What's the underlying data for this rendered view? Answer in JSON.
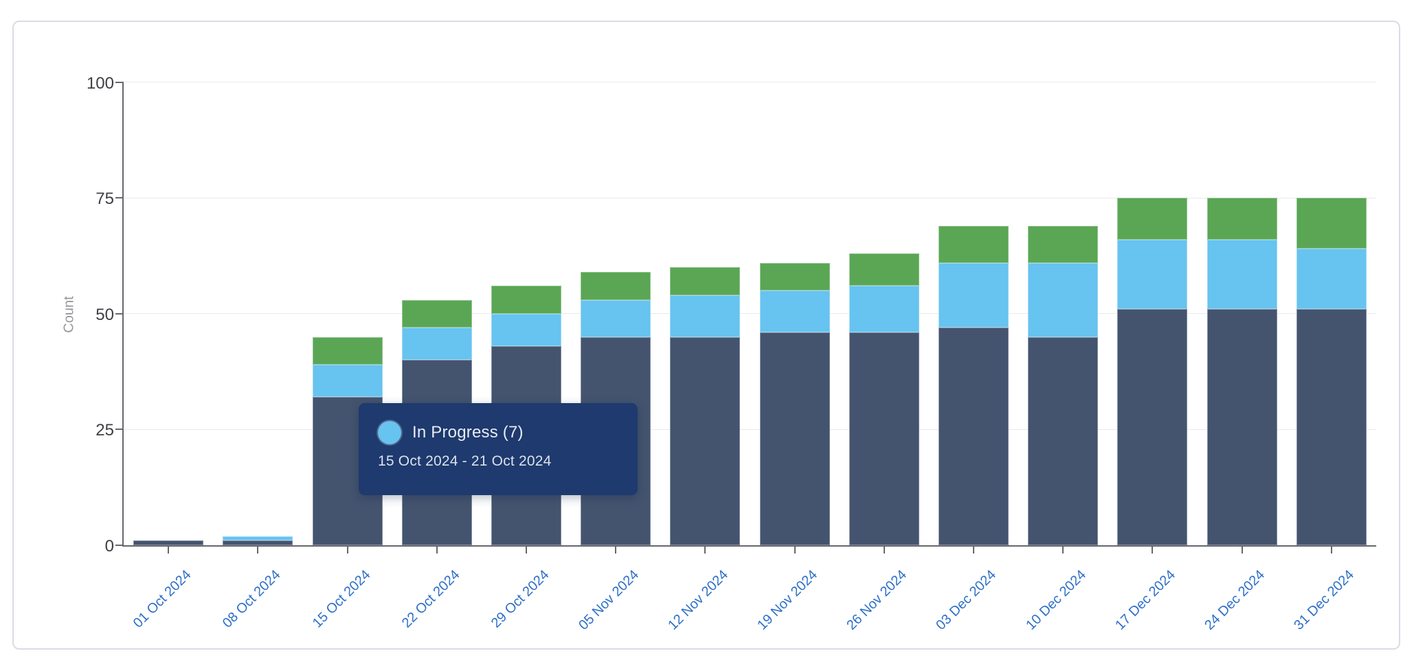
{
  "page": {
    "background": "#ffffff"
  },
  "chart_data": {
    "type": "bar",
    "stacked": true,
    "title": "",
    "ylabel": "Count",
    "ylim": [
      0,
      100
    ],
    "yticks": [
      0,
      25,
      50,
      75,
      100
    ],
    "grid": true,
    "legend_visible": false,
    "categories": [
      "01 Oct 2024",
      "08 Oct 2024",
      "15 Oct 2024",
      "22 Oct 2024",
      "29 Oct 2024",
      "05 Nov 2024",
      "12 Nov 2024",
      "19 Nov 2024",
      "26 Nov 2024",
      "03 Dec 2024",
      "10 Dec 2024",
      "17 Dec 2024",
      "24 Dec 2024",
      "31 Dec 2024"
    ],
    "series": [
      {
        "key": "bottom-navy",
        "label": "",
        "color": "#44546F",
        "values": [
          1,
          1,
          32,
          40,
          43,
          45,
          45,
          46,
          46,
          47,
          45,
          51,
          51,
          51
        ]
      },
      {
        "key": "middle-blue",
        "label": "In Progress",
        "color": "#67C3EF",
        "values": [
          0,
          1,
          7,
          7,
          7,
          8,
          9,
          9,
          10,
          14,
          16,
          15,
          15,
          13
        ]
      },
      {
        "key": "top-green",
        "label": "",
        "color": "#5AA655",
        "values": [
          0,
          0,
          6,
          6,
          6,
          6,
          6,
          6,
          7,
          8,
          8,
          9,
          9,
          11
        ]
      }
    ],
    "totals": [
      1,
      2,
      45,
      53,
      56,
      59,
      60,
      61,
      63,
      69,
      69,
      75,
      75,
      75
    ],
    "colors": {
      "x_tick_label": "#2E6FC8",
      "y_tick_label": "#3E3E44",
      "axis": "#66666D",
      "gridline": "#E9E9ED"
    }
  },
  "tooltip": {
    "title": "In Progress (7)",
    "date_range": "15 Oct 2024 - 21 Oct 2024",
    "marker_color": "#67C3EF",
    "background": "#1E3A6E",
    "title_color": "#E9ECF3",
    "date_color": "#DCE1EB"
  }
}
